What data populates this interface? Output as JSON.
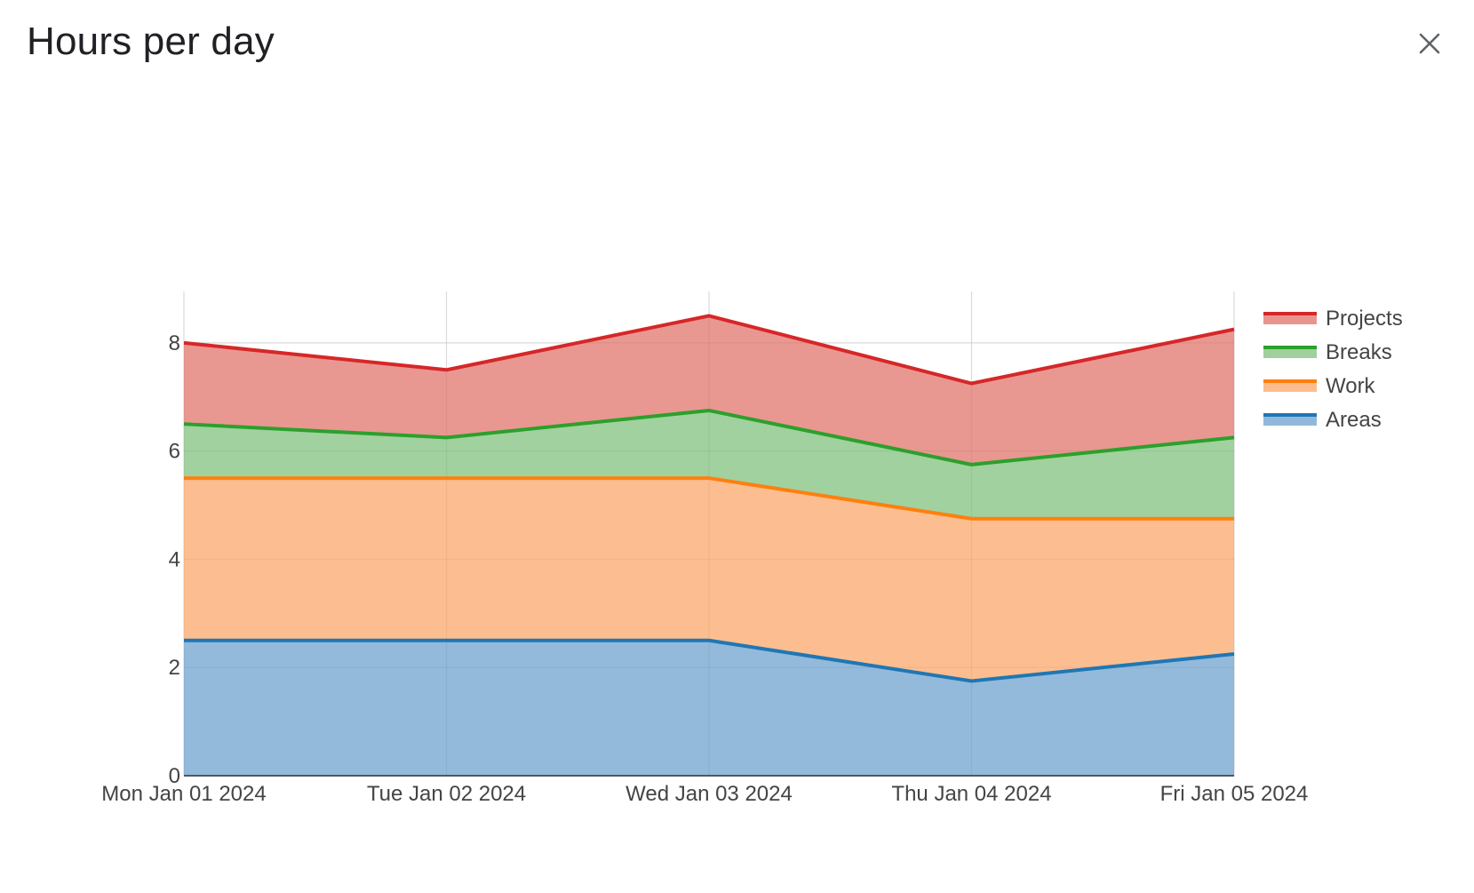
{
  "dialog": {
    "title": "Hours per day",
    "close_icon": "close-icon"
  },
  "colors": {
    "Projects": {
      "line": "#d62728",
      "fill": "#e9958f"
    },
    "Breaks": {
      "line": "#2ca02c",
      "fill": "#9fd09d"
    },
    "Work": {
      "line": "#ff7f0e",
      "fill": "#fcbd8e"
    },
    "Areas": {
      "line": "#1f77b4",
      "fill": "#91b8da"
    },
    "grid": "#e6e6e6",
    "axis": "#444444"
  },
  "chart_data": {
    "type": "area",
    "stacked": true,
    "title": "",
    "xlabel": "",
    "ylabel": "",
    "categories": [
      "Mon Jan 01 2024",
      "Tue Jan 02 2024",
      "Wed Jan 03 2024",
      "Thu Jan 04 2024",
      "Fri Jan 05 2024"
    ],
    "yticks": [
      0,
      2,
      4,
      6,
      8
    ],
    "ylim": [
      0,
      8.95
    ],
    "grid": true,
    "legend_position": "top-right",
    "series": [
      {
        "name": "Areas",
        "values": [
          2.5,
          2.5,
          2.5,
          1.75,
          2.25
        ]
      },
      {
        "name": "Work",
        "values": [
          3,
          3,
          3,
          3,
          2.5
        ]
      },
      {
        "name": "Breaks",
        "values": [
          1,
          0.75,
          1.25,
          1,
          1.5
        ]
      },
      {
        "name": "Projects",
        "values": [
          1.5,
          1.25,
          1.75,
          1.5,
          2
        ]
      }
    ],
    "legend_order": [
      "Projects",
      "Breaks",
      "Work",
      "Areas"
    ]
  }
}
